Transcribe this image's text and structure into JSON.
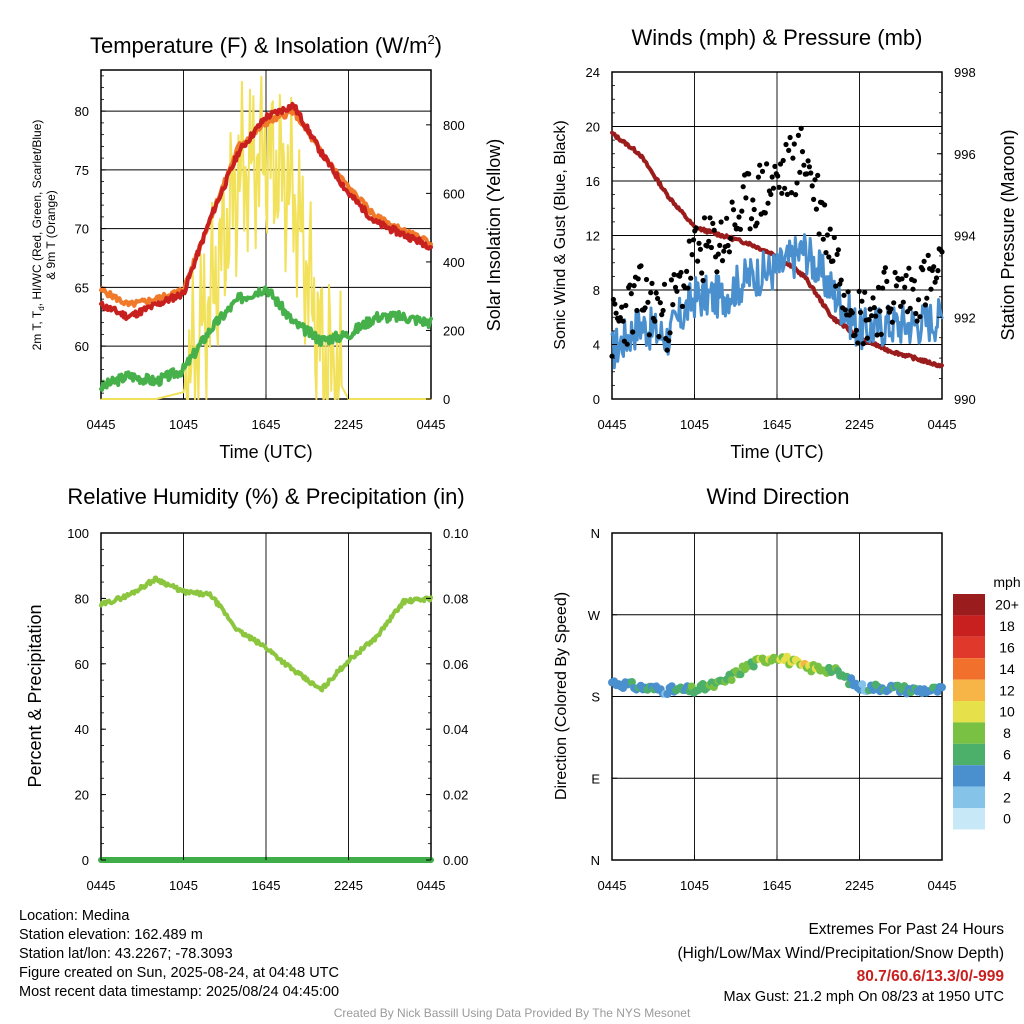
{
  "panels": {
    "temperature": {
      "title_main": "Temperature (F) & Insolation (W/m",
      "title_sup": "2",
      "title_end": ")",
      "ylabel_left_line1": "2m T, T",
      "ylabel_left_sub": "d",
      "ylabel_left_line1b": ", HI/WC (Red, Green, Scarlet/Blue)",
      "ylabel_left_line2": "& 9m T (Orange)",
      "ylabel_right": "Solar Insolation (Yellow)",
      "xlabel": "Time (UTC)",
      "xticks": [
        "0445",
        "1045",
        "1645",
        "2245",
        "0445"
      ],
      "yticks_left": [
        "60",
        "65",
        "70",
        "75",
        "80"
      ],
      "yticks_right": [
        "0",
        "200",
        "400",
        "600",
        "800"
      ]
    },
    "winds": {
      "title": "Winds (mph) & Pressure (mb)",
      "ylabel_left": "Sonic Wind & Gust (Blue, Black)",
      "ylabel_right": "Station Pressure (Maroon)",
      "xlabel": "Time (UTC)",
      "xticks": [
        "0445",
        "1045",
        "1645",
        "2245",
        "0445"
      ],
      "yticks_left": [
        "0",
        "4",
        "8",
        "12",
        "16",
        "20",
        "24"
      ],
      "yticks_right": [
        "990",
        "992",
        "994",
        "996",
        "998"
      ]
    },
    "humidity": {
      "title": "Relative Humidity (%) & Precipitation (in)",
      "ylabel_left": "Percent & Precipitation",
      "xticks": [
        "0445",
        "1045",
        "1645",
        "2245",
        "0445"
      ],
      "yticks_left": [
        "0",
        "20",
        "40",
        "60",
        "80",
        "100"
      ],
      "yticks_right": [
        "0.00",
        "0.02",
        "0.04",
        "0.06",
        "0.08",
        "0.10"
      ]
    },
    "direction": {
      "title": "Wind Direction",
      "ylabel_left": "Direction (Colored By Speed)",
      "xticks": [
        "0445",
        "1045",
        "1645",
        "2245",
        "0445"
      ],
      "yticks_left": [
        "N",
        "E",
        "S",
        "W",
        "N"
      ],
      "colorbar_title": "mph",
      "colorbar_labels": [
        "0",
        "2",
        "4",
        "6",
        "8",
        "10",
        "12",
        "14",
        "16",
        "18",
        "20+"
      ],
      "colorbar_colors": [
        "#c6e8f7",
        "#86c3e8",
        "#4a90cf",
        "#4caf6a",
        "#78c143",
        "#e6e04a",
        "#f7b548",
        "#f0702c",
        "#e0392b",
        "#c8201f",
        "#9b1c1c"
      ]
    }
  },
  "info": {
    "location": "Location: Medina",
    "elevation": "Station elevation: 162.489 m",
    "latlon": "Station lat/lon: 43.2267; -78.3093",
    "created": "Figure created on Sun, 2025-08-24, at 04:48 UTC",
    "recent": "Most recent data timestamp: 2025/08/24 04:45:00",
    "extremes_title": "Extremes For Past 24 Hours",
    "extremes_sub": "(High/Low/Max Wind/Precipitation/Snow Depth)",
    "extremes_values": "80.7/60.6/13.3/0/-999",
    "max_gust": "Max Gust: 21.2 mph On 08/23 at 1950 UTC",
    "credit": "Created By Nick Bassill Using Data Provided By The NYS Mesonet"
  },
  "colors": {
    "temp_2m": "#c8201f",
    "temp_9m": "#f07a2a",
    "dewpoint": "#46b04a",
    "solar": "#f2e15a",
    "wind": "#4a90cf",
    "gust": "#000000",
    "pressure": "#9b1c1c",
    "humidity": "#8cc63f",
    "precip": "#3fae49"
  },
  "chart_data": [
    {
      "type": "line",
      "title": "Temperature (F) & Insolation (W/m2)",
      "xlabel": "Time (UTC)",
      "x": [
        "0445",
        "0645",
        "0845",
        "1045",
        "1245",
        "1445",
        "1645",
        "1845",
        "2045",
        "2245",
        "0045",
        "0245",
        "0445"
      ],
      "ylim": [
        55.5,
        83.5
      ],
      "y2lim": [
        0,
        960
      ],
      "series": [
        {
          "name": "2m T (Red)",
          "axis": "left",
          "values": [
            63.5,
            62.5,
            63.5,
            64.5,
            71.0,
            76.5,
            79.5,
            80.5,
            76.5,
            73.0,
            70.5,
            69.5,
            68.5
          ]
        },
        {
          "name": "9m T (Orange)",
          "axis": "left",
          "values": [
            64.8,
            63.5,
            64.0,
            64.8,
            71.0,
            77.0,
            79.0,
            80.0,
            76.5,
            73.5,
            71.0,
            69.8,
            68.8
          ]
        },
        {
          "name": "Td (Green)",
          "axis": "left",
          "values": [
            56.5,
            57.5,
            57.0,
            58.0,
            61.5,
            64.0,
            65.0,
            62.0,
            60.5,
            61.0,
            62.5,
            62.5,
            62.0
          ]
        },
        {
          "name": "Solar Insolation (Yellow)",
          "axis": "right",
          "values": [
            0,
            0,
            0,
            20,
            300,
            650,
            720,
            600,
            150,
            0,
            0,
            0,
            0
          ]
        }
      ]
    },
    {
      "type": "line",
      "title": "Winds (mph) & Pressure (mb)",
      "xlabel": "Time (UTC)",
      "x": [
        "0445",
        "0645",
        "0845",
        "1045",
        "1245",
        "1445",
        "1645",
        "1845",
        "2045",
        "2245",
        "0045",
        "0245",
        "0445"
      ],
      "ylim": [
        0,
        24
      ],
      "y2lim": [
        990,
        998
      ],
      "series": [
        {
          "name": "Sonic Wind (Blue)",
          "axis": "left",
          "values": [
            3.5,
            5.5,
            4.5,
            7.5,
            7.5,
            9.0,
            9.5,
            11.0,
            8.0,
            5.0,
            5.5,
            5.5,
            6.0
          ]
        },
        {
          "name": "Gust (Black)",
          "axis": "left",
          "values": [
            5.0,
            7.5,
            6.0,
            10.5,
            11.5,
            14.5,
            16.0,
            18.0,
            11.0,
            6.0,
            7.5,
            8.0,
            9.0
          ]
        },
        {
          "name": "Station Pressure (Maroon)",
          "axis": "right",
          "values": [
            996.5,
            996.0,
            995.0,
            994.2,
            994.0,
            993.8,
            993.5,
            993.0,
            992.0,
            991.5,
            991.2,
            991.0,
            990.8
          ]
        }
      ]
    },
    {
      "type": "line",
      "title": "Relative Humidity (%) & Precipitation (in)",
      "x": [
        "0445",
        "0645",
        "0845",
        "1045",
        "1245",
        "1445",
        "1645",
        "1845",
        "2045",
        "2245",
        "0045",
        "0245",
        "0445"
      ],
      "ylim": [
        0,
        100
      ],
      "y2lim": [
        0,
        0.1
      ],
      "series": [
        {
          "name": "Relative Humidity",
          "axis": "left",
          "values": [
            78,
            81,
            86,
            82,
            81,
            70,
            65,
            58,
            52,
            61,
            68,
            79,
            80
          ]
        },
        {
          "name": "Precipitation",
          "axis": "right",
          "values": [
            0,
            0,
            0,
            0,
            0,
            0,
            0,
            0,
            0,
            0,
            0,
            0,
            0
          ]
        }
      ]
    },
    {
      "type": "scatter",
      "title": "Wind Direction",
      "x": [
        "0445",
        "0645",
        "0845",
        "1045",
        "1245",
        "1445",
        "1645",
        "1845",
        "2045",
        "2245",
        "0045",
        "0245",
        "0445"
      ],
      "yticks": [
        "N",
        "E",
        "S",
        "W",
        "N"
      ],
      "ylim": [
        0,
        360
      ],
      "series": [
        {
          "name": "Direction (degrees)",
          "values": [
            196,
            190,
            187,
            187,
            195,
            215,
            225,
            212,
            210,
            190,
            190,
            187,
            187
          ]
        },
        {
          "name": "Speed (mph)",
          "values": [
            3.5,
            5.5,
            4.5,
            7.5,
            7.5,
            9.0,
            9.5,
            11.0,
            8.0,
            5.0,
            5.5,
            5.5,
            6.0
          ]
        }
      ]
    }
  ]
}
